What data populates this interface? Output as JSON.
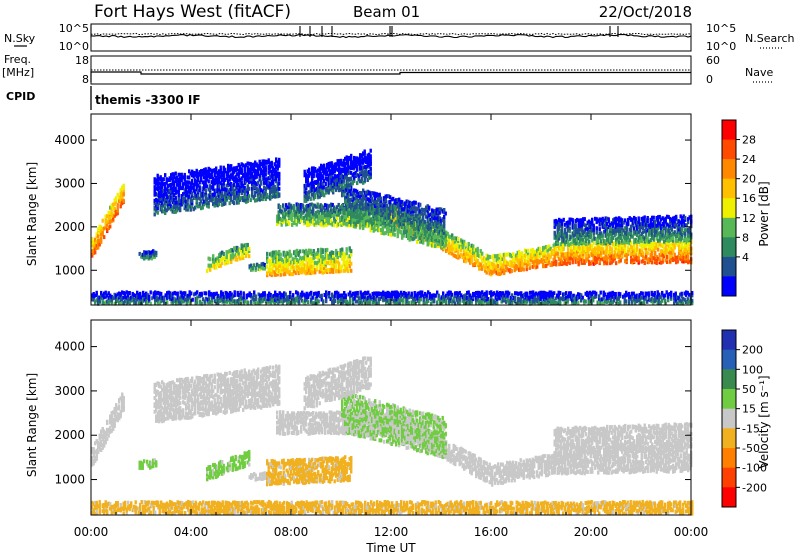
{
  "header": {
    "station": "Fort Hays West (fitACF)",
    "beam": "Beam 01",
    "date": "22/Oct/2018"
  },
  "params": {
    "nsky_label": "N.Sky",
    "nsky_ticks": [
      "10^5",
      "10^0"
    ],
    "nsearch_label": "N.Search",
    "nsearch_ticks": [
      "10^5",
      "10^0"
    ],
    "freq_label": "Freq.",
    "freq_unit": "[MHz]",
    "freq_ticks": [
      "18",
      "8"
    ],
    "nave_label": "Nave",
    "nave_ticks": [
      "60",
      "0"
    ],
    "cpid_label": "CPID",
    "cpid_text": "themis -3300 IF"
  },
  "panels": {
    "ylabel": "Slant Range [km]",
    "yticks": [
      "4000",
      "3000",
      "2000",
      "1000"
    ],
    "xticks": [
      "00:00",
      "04:00",
      "08:00",
      "12:00",
      "16:00",
      "20:00",
      "00:00"
    ],
    "xlabel": "Time UT"
  },
  "colorbars": {
    "power": {
      "label": "Power [dB]",
      "ticks": [
        "28",
        "24",
        "20",
        "16",
        "12",
        "8",
        "4"
      ],
      "colors": [
        "#ff0000",
        "#ff4a00",
        "#ff8800",
        "#ffc000",
        "#eef000",
        "#58b858",
        "#2f8a5f",
        "#205090",
        "#0000ff"
      ]
    },
    "velocity": {
      "label": "Velocity [m s⁻¹]",
      "ticks": [
        "200",
        "100",
        "50",
        "15",
        "-15",
        "-50",
        "-100",
        "-200"
      ],
      "colors": [
        "#2030b0",
        "#2860b8",
        "#3a8a50",
        "#70cc40",
        "#c8c8c8",
        "#f0b020",
        "#ff8000",
        "#ff4000",
        "#ff0000"
      ]
    }
  },
  "chart_data": [
    {
      "type": "heatmap",
      "title": "Power",
      "xlabel": "Time UT",
      "ylabel": "Slant Range [km]",
      "xlim": [
        0,
        24
      ],
      "ylim": [
        200,
        4600
      ],
      "colorbar_label": "Power [dB]",
      "colorbar_range": [
        0,
        30
      ],
      "bands": [
        {
          "t": [
            0.0,
            1.3
          ],
          "range_start": [
            1300,
            2600
          ],
          "width_km": 450,
          "power_db": 26
        },
        {
          "t": [
            1.9,
            2.6
          ],
          "range_start": [
            1250,
            1300
          ],
          "width_km": 200,
          "power_db": 10
        },
        {
          "t": [
            4.6,
            6.3
          ],
          "range_start": [
            1000,
            1350
          ],
          "width_km": 300,
          "power_db": 18
        },
        {
          "t": [
            6.3,
            7.0
          ],
          "range_start": [
            1000,
            1050
          ],
          "width_km": 150,
          "power_db": 12
        },
        {
          "t": [
            7.0,
            10.4
          ],
          "range_start": [
            900,
            1000
          ],
          "width_km": 550,
          "power_db": 20
        },
        {
          "t": [
            7.4,
            12.8
          ],
          "range_start": [
            2050,
            2050
          ],
          "width_km": 500,
          "power_db": 14
        },
        {
          "t": [
            12.0,
            16.0
          ],
          "range_start": [
            2100,
            900
          ],
          "width_km": 450,
          "power_db": 22
        },
        {
          "t": [
            16.0,
            18.5
          ],
          "range_start": [
            900,
            1150
          ],
          "width_km": 450,
          "power_db": 24
        },
        {
          "t": [
            18.5,
            24.0
          ],
          "range_start": [
            1150,
            1200
          ],
          "width_km": 500,
          "power_db": 26
        },
        {
          "t": [
            10.0,
            14.2
          ],
          "range_start": [
            2100,
            1500
          ],
          "width_km": 900,
          "power_db": 12
        },
        {
          "t": [
            18.5,
            24.0
          ],
          "range_start": [
            1600,
            1700
          ],
          "width_km": 600,
          "power_db": 10
        },
        {
          "t": [
            2.5,
            7.5
          ],
          "range_start": [
            2300,
            2700
          ],
          "width_km": 900,
          "power_db": 6
        },
        {
          "t": [
            8.5,
            11.2
          ],
          "range_start": [
            2600,
            3100
          ],
          "width_km": 700,
          "power_db": 6
        },
        {
          "t": [
            0.0,
            24.0
          ],
          "range_start": [
            250,
            250
          ],
          "width_km": 250,
          "power_db": 8
        }
      ]
    },
    {
      "type": "heatmap",
      "title": "Velocity",
      "xlabel": "Time UT",
      "ylabel": "Slant Range [km]",
      "xlim": [
        0,
        24
      ],
      "ylim": [
        200,
        4600
      ],
      "colorbar_label": "Velocity [m s⁻¹]",
      "colorbar_range": [
        -200,
        200
      ],
      "bands": [
        {
          "t": [
            0.0,
            1.3
          ],
          "range_start": [
            1300,
            2600
          ],
          "width_km": 450,
          "velocity": 0
        },
        {
          "t": [
            1.9,
            2.6
          ],
          "range_start": [
            1250,
            1300
          ],
          "width_km": 200,
          "velocity": 40
        },
        {
          "t": [
            4.6,
            6.3
          ],
          "range_start": [
            1000,
            1350
          ],
          "width_km": 300,
          "velocity": 40
        },
        {
          "t": [
            6.3,
            7.0
          ],
          "range_start": [
            1000,
            1050
          ],
          "width_km": 150,
          "velocity": 0
        },
        {
          "t": [
            7.0,
            10.4
          ],
          "range_start": [
            900,
            1000
          ],
          "width_km": 550,
          "velocity": -40
        },
        {
          "t": [
            7.4,
            12.8
          ],
          "range_start": [
            2050,
            2050
          ],
          "width_km": 500,
          "velocity": 0
        },
        {
          "t": [
            12.0,
            16.0
          ],
          "range_start": [
            2100,
            900
          ],
          "width_km": 450,
          "velocity": 0
        },
        {
          "t": [
            16.0,
            18.5
          ],
          "range_start": [
            900,
            1150
          ],
          "width_km": 450,
          "velocity": 0
        },
        {
          "t": [
            18.5,
            24.0
          ],
          "range_start": [
            1150,
            1200
          ],
          "width_km": 500,
          "velocity": 0
        },
        {
          "t": [
            10.0,
            14.2
          ],
          "range_start": [
            2100,
            1500
          ],
          "width_km": 900,
          "velocity": 30
        },
        {
          "t": [
            18.5,
            24.0
          ],
          "range_start": [
            1600,
            1700
          ],
          "width_km": 600,
          "velocity": 0
        },
        {
          "t": [
            2.5,
            7.5
          ],
          "range_start": [
            2300,
            2700
          ],
          "width_km": 900,
          "velocity": 0
        },
        {
          "t": [
            8.5,
            11.2
          ],
          "range_start": [
            2600,
            3100
          ],
          "width_km": 700,
          "velocity": 0
        },
        {
          "t": [
            0.0,
            24.0
          ],
          "range_start": [
            250,
            250
          ],
          "width_km": 250,
          "velocity": -40
        }
      ]
    }
  ]
}
